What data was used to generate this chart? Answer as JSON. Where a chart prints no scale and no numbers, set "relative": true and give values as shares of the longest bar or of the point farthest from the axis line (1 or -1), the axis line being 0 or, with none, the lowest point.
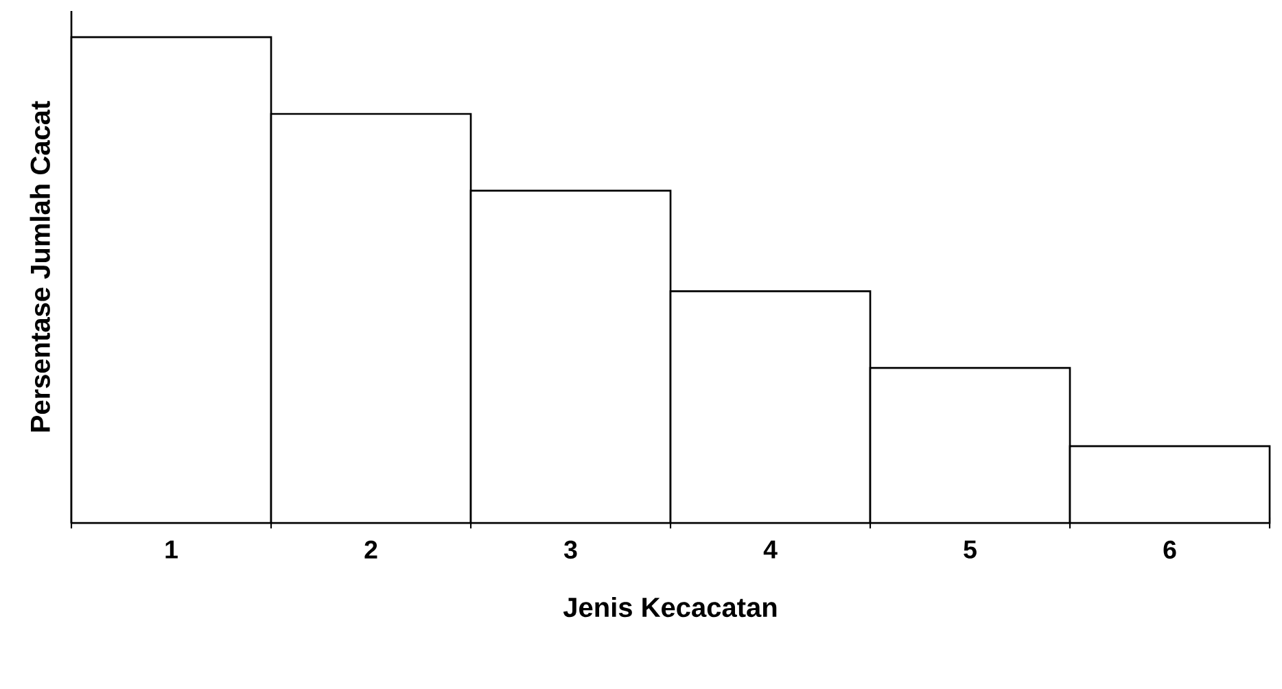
{
  "chart_data": {
    "type": "bar",
    "xlabel": "Jenis Kecacatan",
    "ylabel": "Persentase Jumlah Cacat",
    "categories": [
      "1",
      "2",
      "3",
      "4",
      "5",
      "6"
    ],
    "values": [
      1,
      0.842,
      0.684,
      0.477,
      0.319,
      0.158
    ],
    "color": "#ffffff",
    "relative": true
  }
}
